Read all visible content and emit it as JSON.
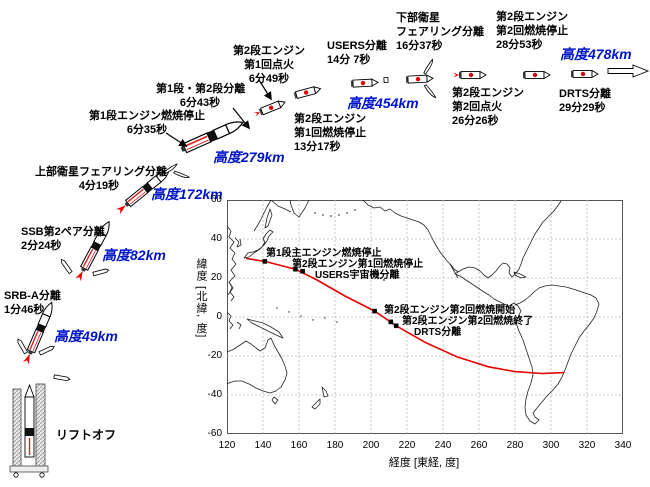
{
  "sequence": {
    "liftoff": "リフトオフ",
    "events": [
      {
        "id": "srb-a-sep",
        "lines": [
          "SRB-A分離",
          "1分46秒"
        ]
      },
      {
        "id": "ssb-pair-sep",
        "lines": [
          "SSB第2ペア分離",
          "2分24秒"
        ]
      },
      {
        "id": "upper-fairing-sep",
        "lines": [
          "上部衛星フェアリング分離",
          "4分19秒"
        ]
      },
      {
        "id": "stage1-cutoff",
        "lines": [
          "第1段エンジン燃焼停止",
          "6分35秒"
        ]
      },
      {
        "id": "stage1-2-sep",
        "lines": [
          "第1段・第2段分離",
          "6分43秒"
        ]
      },
      {
        "id": "stage2-ignition1",
        "lines": [
          "第2段エンジン",
          "第1回点火",
          "6分49秒"
        ]
      },
      {
        "id": "stage2-cutoff1",
        "lines": [
          "第2段エンジン",
          "第1回燃焼停止",
          "13分17秒"
        ]
      },
      {
        "id": "users-sep",
        "lines": [
          "USERS分離",
          "14分 7秒"
        ]
      },
      {
        "id": "lower-fairing-sep",
        "lines": [
          "下部衛星",
          "フェアリング分離",
          "16分37秒"
        ]
      },
      {
        "id": "stage2-ignition2",
        "lines": [
          "第2段エンジン",
          "第2回点火",
          "26分26秒"
        ]
      },
      {
        "id": "stage2-cutoff2",
        "lines": [
          "第2段エンジン",
          "第2回燃焼停止",
          "28分53秒"
        ]
      },
      {
        "id": "drts-sep",
        "lines": [
          "DRTS分離",
          "29分29秒"
        ]
      }
    ],
    "altitudes": [
      "高度49km",
      "高度82km",
      "高度172km",
      "高度279km",
      "高度454km",
      "高度478km"
    ]
  },
  "map": {
    "xlabel": "経度 [東経, 度]",
    "ylabel": "緯度 [北緯, 度]",
    "xticks": [
      "120",
      "140",
      "160",
      "180",
      "200",
      "220",
      "240",
      "260",
      "280",
      "300",
      "320",
      "340"
    ],
    "yticks": [
      "60",
      "40",
      "20",
      "0",
      "-20",
      "-40",
      "-60"
    ],
    "annotations": [
      "第1段主エンジン燃焼停止",
      "第2段エンジン第1回燃焼停止",
      "USERS宇宙機分離",
      "第2段エンジン第2回燃焼開始",
      "第2段エンジン第2回燃焼終了",
      "DRTS分離"
    ]
  },
  "colors": {
    "altitude_text": "#0013cc",
    "track": "#e80000",
    "grid": "#b8b8b8",
    "coast": "#222222",
    "marker": "#000000"
  },
  "chart_data": {
    "type": "line",
    "title": "",
    "xlabel": "経度 [東経, 度]",
    "ylabel": "緯度 [北緯, 度]",
    "xlim": [
      120,
      340
    ],
    "ylim": [
      -60,
      60
    ],
    "grid": true,
    "legend": "none",
    "series": [
      {
        "name": "ground-track",
        "color": "#e80000",
        "points_lon_lat": [
          [
            131,
            30
          ],
          [
            141,
            28.5
          ],
          [
            158,
            24.5
          ],
          [
            170,
            19
          ],
          [
            185,
            11
          ],
          [
            202,
            3
          ],
          [
            214,
            -4.5
          ],
          [
            230,
            -13
          ],
          [
            248,
            -20.5
          ],
          [
            265,
            -25.5
          ],
          [
            280,
            -28
          ],
          [
            295,
            -29
          ],
          [
            307,
            -28.5
          ]
        ]
      }
    ],
    "markers": [
      {
        "lon": 141,
        "lat": 28.5,
        "label": "第1段主エンジン燃焼停止"
      },
      {
        "lon": 158,
        "lat": 24.5,
        "label": "第2段エンジン第1回燃焼停止"
      },
      {
        "lon": 162,
        "lat": 23.5,
        "label": "USERS宇宙機分離"
      },
      {
        "lon": 202,
        "lat": 3,
        "label": "第2段エンジン第2回燃焼開始"
      },
      {
        "lon": 211,
        "lat": -2.5,
        "label": "第2段エンジン第2回燃焼終了"
      },
      {
        "lon": 214,
        "lat": -4.5,
        "label": "DRTS分離"
      }
    ]
  }
}
